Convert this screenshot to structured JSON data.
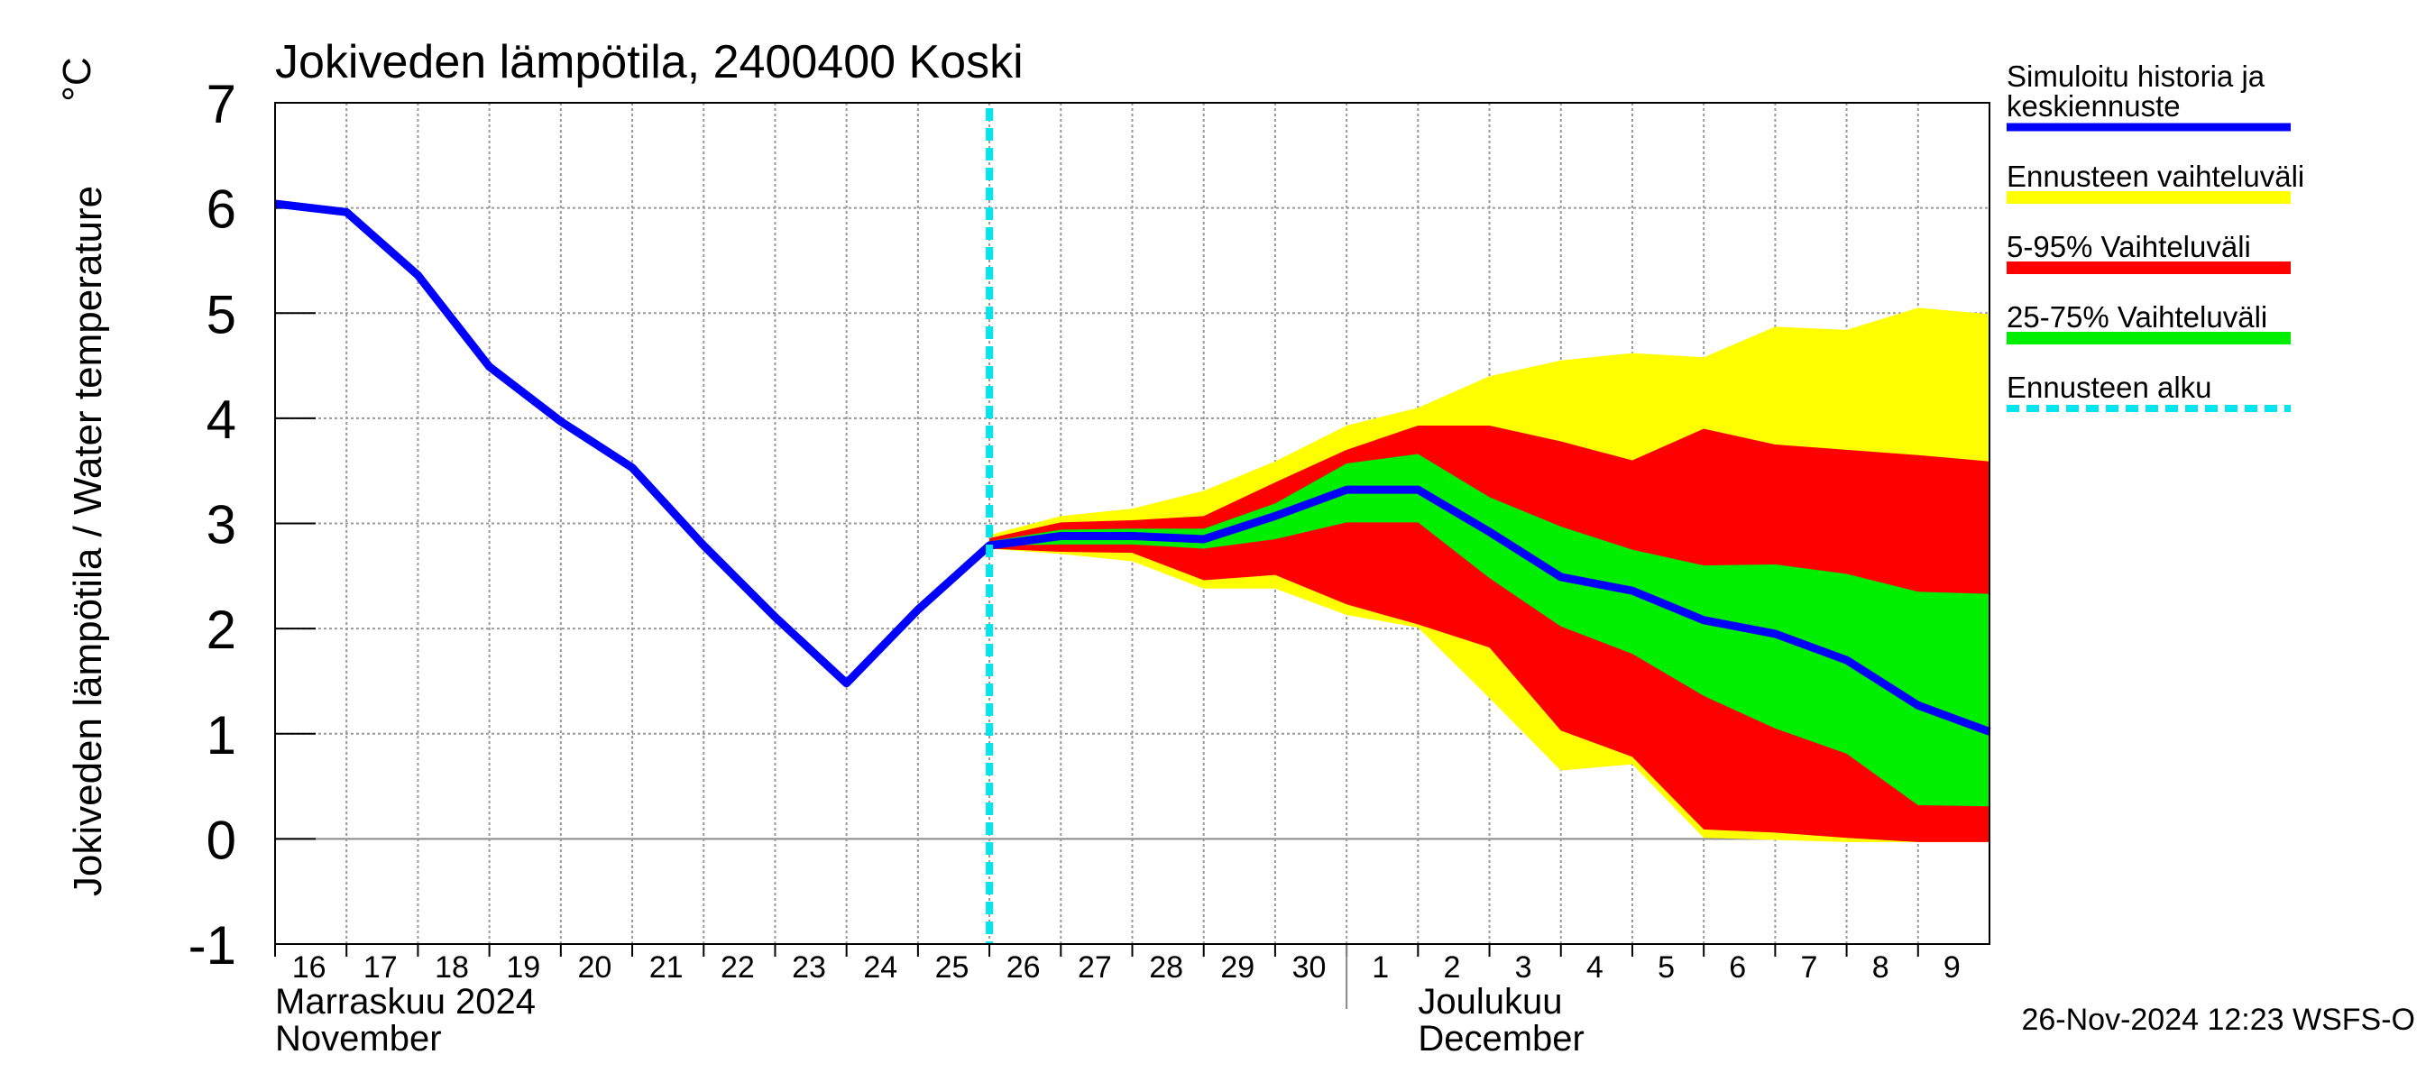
{
  "chart_data": {
    "type": "line",
    "title": "Jokiveden lämpötila, 2400400 Koski",
    "y_label": "Jokiveden lämpötila / Water temperature",
    "y_unit": "°C",
    "footer": "26-Nov-2024 12:23 WSFS-O",
    "x": [
      "2024-11-16",
      "2024-11-17",
      "2024-11-18",
      "2024-11-19",
      "2024-11-20",
      "2024-11-21",
      "2024-11-22",
      "2024-11-23",
      "2024-11-24",
      "2024-11-25",
      "2024-11-26",
      "2024-11-27",
      "2024-11-28",
      "2024-11-29",
      "2024-11-30",
      "2024-12-01",
      "2024-12-02",
      "2024-12-03",
      "2024-12-04",
      "2024-12-05",
      "2024-12-06",
      "2024-12-07",
      "2024-12-08",
      "2024-12-09",
      "2024-12-10"
    ],
    "series": [
      {
        "name": "Simuloitu historia ja\nkeskiennuste",
        "color": "#0000ff",
        "values": [
          6.04,
          5.96,
          5.36,
          4.49,
          3.97,
          3.53,
          2.79,
          2.11,
          1.48,
          2.18,
          2.79,
          2.88,
          2.88,
          2.85,
          3.07,
          3.32,
          3.32,
          2.92,
          2.49,
          2.36,
          2.08,
          1.95,
          1.7,
          1.27,
          1.02
        ]
      }
    ],
    "bands": [
      {
        "name": "Ennusteen vaihteluväli",
        "color": "#ffff00",
        "x": [
          "2024-11-26",
          "2024-11-27",
          "2024-11-28",
          "2024-11-29",
          "2024-11-30",
          "2024-12-01",
          "2024-12-02",
          "2024-12-03",
          "2024-12-04",
          "2024-12-05",
          "2024-12-06",
          "2024-12-07",
          "2024-12-08",
          "2024-12-09",
          "2024-12-10"
        ],
        "high": [
          2.89,
          3.07,
          3.14,
          3.31,
          3.59,
          3.93,
          4.1,
          4.4,
          4.55,
          4.62,
          4.58,
          4.87,
          4.84,
          5.05,
          4.99
        ],
        "low": [
          2.76,
          2.71,
          2.64,
          2.38,
          2.38,
          2.13,
          2.01,
          1.34,
          0.65,
          0.71,
          0.01,
          -0.01,
          -0.03,
          -0.03,
          -0.03
        ]
      },
      {
        "name": "5-95% Vaihteluväli",
        "color": "#ff0000",
        "x": [
          "2024-11-26",
          "2024-11-27",
          "2024-11-28",
          "2024-11-29",
          "2024-11-30",
          "2024-12-01",
          "2024-12-02",
          "2024-12-03",
          "2024-12-04",
          "2024-12-05",
          "2024-12-06",
          "2024-12-07",
          "2024-12-08",
          "2024-12-09",
          "2024-12-10"
        ],
        "high": [
          2.86,
          3.01,
          3.03,
          3.07,
          3.39,
          3.7,
          3.93,
          3.93,
          3.78,
          3.6,
          3.9,
          3.75,
          3.7,
          3.65,
          3.59
        ],
        "low": [
          2.76,
          2.73,
          2.72,
          2.46,
          2.51,
          2.23,
          2.04,
          1.82,
          1.03,
          0.78,
          0.09,
          0.06,
          0.01,
          -0.03,
          -0.03
        ]
      },
      {
        "name": "25-75% Vaihteluväli",
        "color": "#00ee00",
        "x": [
          "2024-11-26",
          "2024-11-27",
          "2024-11-28",
          "2024-11-29",
          "2024-11-30",
          "2024-12-01",
          "2024-12-02",
          "2024-12-03",
          "2024-12-04",
          "2024-12-05",
          "2024-12-06",
          "2024-12-07",
          "2024-12-08",
          "2024-12-09",
          "2024-12-10"
        ],
        "high": [
          2.83,
          2.94,
          2.95,
          2.95,
          3.19,
          3.57,
          3.66,
          3.25,
          2.97,
          2.75,
          2.6,
          2.61,
          2.52,
          2.35,
          2.33
        ],
        "low": [
          2.79,
          2.8,
          2.8,
          2.76,
          2.85,
          3.01,
          3.01,
          2.48,
          2.02,
          1.76,
          1.36,
          1.05,
          0.81,
          0.32,
          0.31
        ]
      }
    ],
    "forecast_start": {
      "name": "Ennusteen alku",
      "color": "#00e5ee",
      "x": "2024-11-26"
    },
    "xlim": [
      "2024-11-16",
      "2024-12-10"
    ],
    "xticks": [
      {
        "value": "2024-11-16",
        "label": "16"
      },
      {
        "value": "2024-11-17",
        "label": "17"
      },
      {
        "value": "2024-11-18",
        "label": "18"
      },
      {
        "value": "2024-11-19",
        "label": "19"
      },
      {
        "value": "2024-11-20",
        "label": "20"
      },
      {
        "value": "2024-11-21",
        "label": "21"
      },
      {
        "value": "2024-11-22",
        "label": "22"
      },
      {
        "value": "2024-11-23",
        "label": "23"
      },
      {
        "value": "2024-11-24",
        "label": "24"
      },
      {
        "value": "2024-11-25",
        "label": "25"
      },
      {
        "value": "2024-11-26",
        "label": "26"
      },
      {
        "value": "2024-11-27",
        "label": "27"
      },
      {
        "value": "2024-11-28",
        "label": "28"
      },
      {
        "value": "2024-11-29",
        "label": "29"
      },
      {
        "value": "2024-11-30",
        "label": "30"
      },
      {
        "value": "2024-12-01",
        "label": "1"
      },
      {
        "value": "2024-12-02",
        "label": "2"
      },
      {
        "value": "2024-12-03",
        "label": "3"
      },
      {
        "value": "2024-12-04",
        "label": "4"
      },
      {
        "value": "2024-12-05",
        "label": "5"
      },
      {
        "value": "2024-12-06",
        "label": "6"
      },
      {
        "value": "2024-12-07",
        "label": "7"
      },
      {
        "value": "2024-12-08",
        "label": "8"
      },
      {
        "value": "2024-12-09",
        "label": "9"
      }
    ],
    "months": [
      {
        "start": "2024-11-16",
        "label": "Marraskuu 2024",
        "label_en": "November"
      },
      {
        "start": "2024-12-01",
        "label": "Joulukuu",
        "label_en": "December"
      }
    ],
    "ylim": [
      -1,
      7
    ],
    "yticks": [
      -1,
      0,
      1,
      2,
      3,
      4,
      5,
      6,
      7
    ],
    "grid": true
  }
}
